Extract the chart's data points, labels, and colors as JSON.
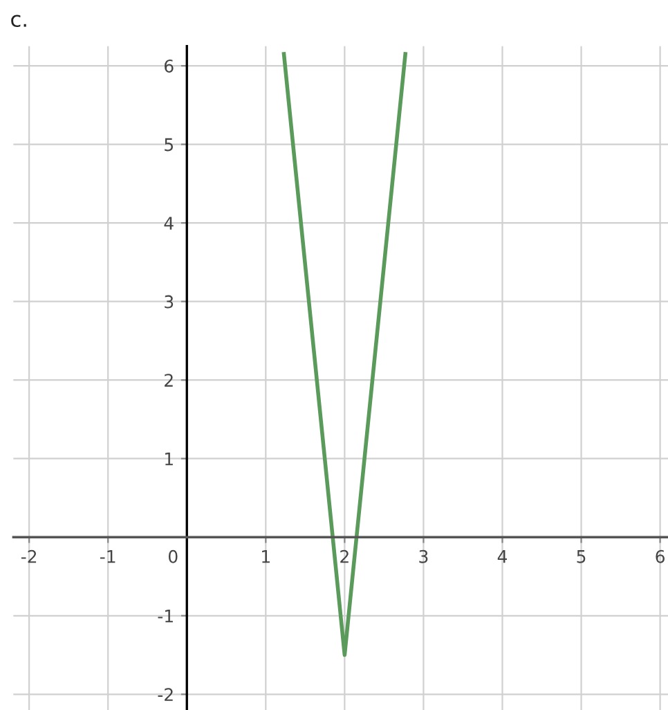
{
  "chart_data": {
    "type": "line",
    "title": "c.",
    "x": [
      1.23,
      2,
      2.77
    ],
    "series": [
      {
        "color": "#5a9a5a",
        "values": [
          6.15,
          -1.5,
          6.15
        ]
      }
    ],
    "xlim": [
      -2.2,
      6.1
    ],
    "ylim": [
      -2.2,
      6.25
    ],
    "xticks": [
      -2,
      -1,
      0,
      1,
      2,
      3,
      4,
      5,
      6
    ],
    "yticks": [
      -2,
      -1,
      1,
      2,
      3,
      4,
      5,
      6
    ],
    "grid": true,
    "marker": "none",
    "line_style": "solid"
  }
}
